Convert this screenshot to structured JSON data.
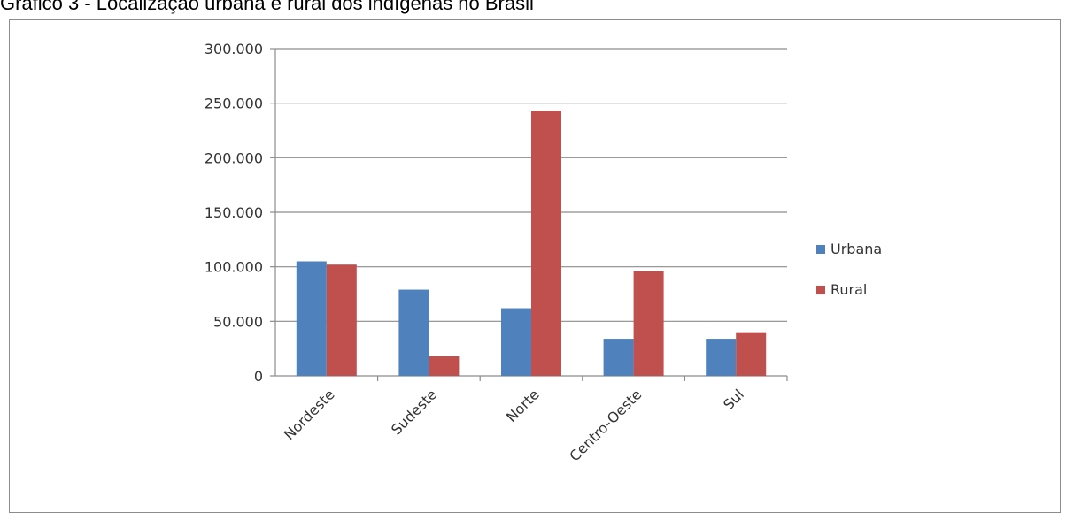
{
  "caption": "Gráfico 3 - Localização urbana e rural dos indígenas no Brasil",
  "chart_data": {
    "type": "bar",
    "categories": [
      "Nordeste",
      "Sudeste",
      "Norte",
      "Centro-Oeste",
      "Sul"
    ],
    "series": [
      {
        "name": "Urbana",
        "color": "#4f81bd",
        "values": [
          105000,
          79000,
          62000,
          34000,
          34000
        ]
      },
      {
        "name": "Rural",
        "color": "#c0504d",
        "values": [
          102000,
          18000,
          243000,
          96000,
          40000
        ]
      }
    ],
    "y_ticks": [
      "0",
      "50.000",
      "100.000",
      "150.000",
      "200.000",
      "250.000",
      "300.000"
    ],
    "ylim": [
      0,
      300000
    ],
    "grid": true,
    "legend": "right"
  }
}
